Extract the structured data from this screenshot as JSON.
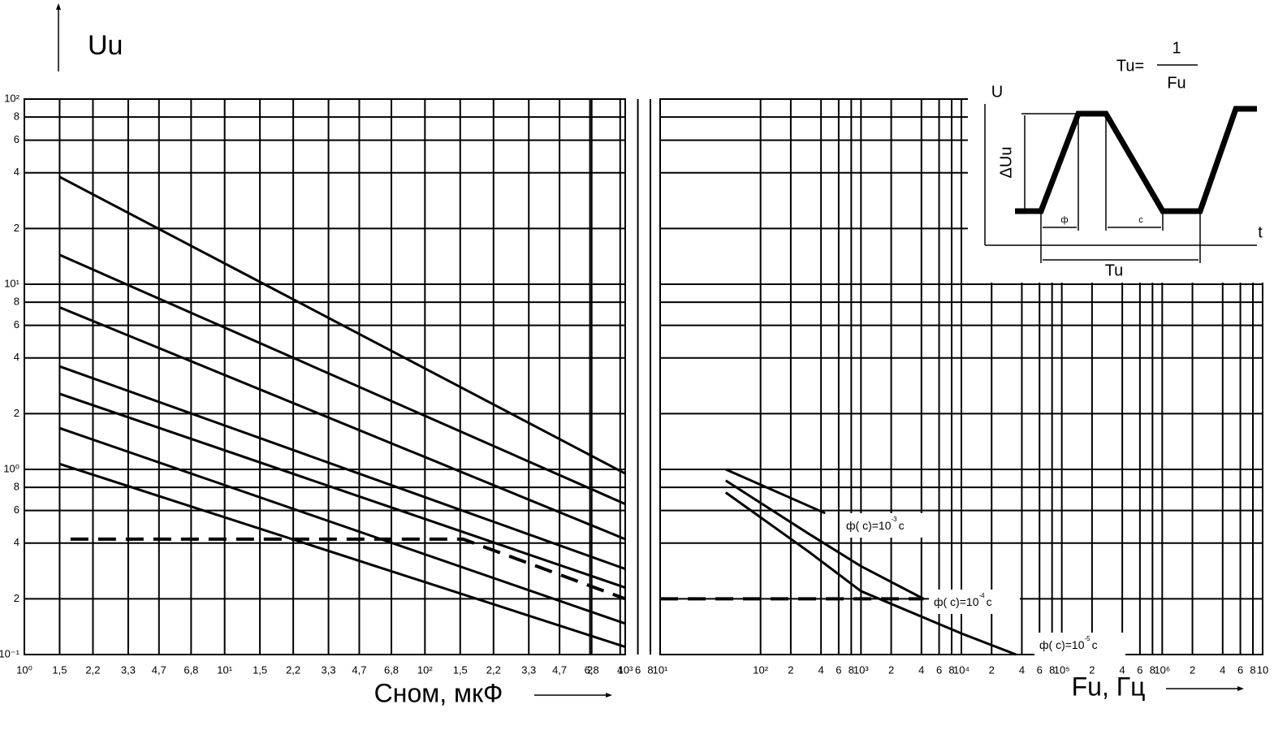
{
  "axis_title_y": "Uu",
  "chart_data": [
    {
      "type": "line",
      "xlabel": "Сном, мкФ",
      "xscale": "log",
      "yscale": "log",
      "xlim": [
        1,
        1000
      ],
      "ylim": [
        0.1,
        100
      ],
      "xticks": [
        {
          "value": 1,
          "label": "10⁰"
        },
        {
          "value": 1.5,
          "label": "1,5"
        },
        {
          "value": 2.2,
          "label": "2,2"
        },
        {
          "value": 3.3,
          "label": "3,3"
        },
        {
          "value": 4.7,
          "label": "4,7"
        },
        {
          "value": 6.8,
          "label": "6,8"
        },
        {
          "value": 10,
          "label": "10¹"
        },
        {
          "value": 15,
          "label": "1,5"
        },
        {
          "value": 22,
          "label": "2,2"
        },
        {
          "value": 33,
          "label": "3,3"
        },
        {
          "value": 47,
          "label": "4,7"
        },
        {
          "value": 68,
          "label": "6,8"
        },
        {
          "value": 100,
          "label": "10²"
        },
        {
          "value": 150,
          "label": "1,5"
        },
        {
          "value": 220,
          "label": "2,2"
        },
        {
          "value": 330,
          "label": "3,3"
        },
        {
          "value": 470,
          "label": "4,7"
        },
        {
          "value": 680,
          "label": "6,8"
        },
        {
          "value": 1000,
          "label": "10³"
        }
      ],
      "yticks": [
        {
          "value": 100,
          "label": "10²"
        },
        {
          "value": 80,
          "label": "8"
        },
        {
          "value": 60,
          "label": "6"
        },
        {
          "value": 40,
          "label": "4"
        },
        {
          "value": 20,
          "label": "2"
        },
        {
          "value": 10,
          "label": "10¹"
        },
        8,
        6,
        4,
        2,
        {
          "value": 1,
          "label": "10⁰"
        },
        {
          "value": 0.8,
          "label": "8"
        },
        {
          "value": 0.6,
          "label": "6"
        },
        {
          "value": 0.4,
          "label": "4"
        },
        {
          "value": 0.2,
          "label": "2"
        },
        {
          "value": 0.1,
          "label": "10⁻¹"
        }
      ],
      "grid": true,
      "color": "#000000",
      "series": [
        {
          "x": [
            1.5,
            1000
          ],
          "values": [
            38,
            0.95
          ]
        },
        {
          "x": [
            1.5,
            1000
          ],
          "values": [
            14.4,
            0.65
          ]
        },
        {
          "x": [
            1.5,
            1000
          ],
          "values": [
            7.5,
            0.42
          ]
        },
        {
          "x": [
            1.5,
            1000
          ],
          "values": [
            3.6,
            0.29
          ]
        },
        {
          "x": [
            1.5,
            1000
          ],
          "values": [
            2.56,
            0.23
          ]
        },
        {
          "x": [
            1.5,
            1000
          ],
          "values": [
            1.67,
            0.147
          ]
        },
        {
          "x": [
            1.5,
            1000
          ],
          "values": [
            1.07,
            0.11
          ]
        },
        {
          "x": [
            1.7,
            155,
            1000
          ],
          "values": [
            0.42,
            0.42,
            0.2
          ],
          "dashed": true
        }
      ]
    },
    {
      "type": "line",
      "xlabel": "Fu, Гц",
      "xscale": "log",
      "yscale": "log",
      "xlim": [
        10,
        10000000
      ],
      "ylim": [
        0.1,
        100
      ],
      "xticks": [
        {
          "value": 10,
          "label": "10¹"
        },
        2,
        4,
        6,
        8,
        {
          "value": 100,
          "label": "10²"
        },
        {
          "value": 200,
          "label": "2"
        },
        {
          "value": 400,
          "label": "4"
        },
        {
          "value": 600,
          "label": "6"
        },
        {
          "value": 800,
          "label": "8"
        },
        {
          "value": 1000,
          "label": "10³"
        },
        {
          "value": 2000,
          "label": "2"
        },
        {
          "value": 4000,
          "label": "4"
        },
        {
          "value": 6000,
          "label": "6"
        },
        {
          "value": 8000,
          "label": "8"
        },
        {
          "value": 10000,
          "label": "10⁴"
        },
        {
          "value": 20000,
          "label": "2"
        },
        {
          "value": 40000,
          "label": "4"
        },
        {
          "value": 60000,
          "label": "6"
        },
        {
          "value": 80000,
          "label": "8"
        },
        {
          "value": 100000,
          "label": "10⁵"
        },
        {
          "value": 200000,
          "label": "2"
        },
        {
          "value": 400000,
          "label": "4"
        },
        {
          "value": 600000,
          "label": "6"
        },
        {
          "value": 800000,
          "label": "8"
        },
        {
          "value": 1000000,
          "label": "10⁶"
        },
        {
          "value": 2000000,
          "label": "2"
        },
        {
          "value": 4000000,
          "label": "4"
        },
        {
          "value": 6000000,
          "label": "6"
        },
        {
          "value": 8000000,
          "label": "8"
        },
        {
          "value": 10000000,
          "label": "10"
        }
      ],
      "grid": true,
      "color": "#000000",
      "series": [
        {
          "x": [
            45,
            440
          ],
          "values": [
            1.0,
            0.58
          ]
        },
        {
          "x": [
            45,
            300,
            1000,
            4200
          ],
          "values": [
            0.87,
            0.45,
            0.3,
            0.2
          ]
        },
        {
          "x": [
            45,
            300,
            1000,
            10000,
            35000
          ],
          "values": [
            0.75,
            0.36,
            0.22,
            0.13,
            0.1
          ]
        },
        {
          "x": [
            10,
            4200
          ],
          "values": [
            0.2,
            0.2
          ],
          "dashed": true
        }
      ],
      "annotations": [
        {
          "text": "ф(  с)=10",
          "exponent": "-3",
          "unit": "с"
        },
        {
          "text": "ф(  с)=10",
          "exponent": "-4",
          "unit": "с"
        },
        {
          "text": "ф(  с)=10",
          "exponent": "-5",
          "unit": "с"
        }
      ]
    }
  ],
  "inset": {
    "formula_left": "Tu=",
    "numerator": "1",
    "denominator": "Fu",
    "u_axis": "U",
    "delta": "ΔUu",
    "t_axis": "t",
    "front": "ф",
    "cut": "с",
    "period": "Tu"
  }
}
